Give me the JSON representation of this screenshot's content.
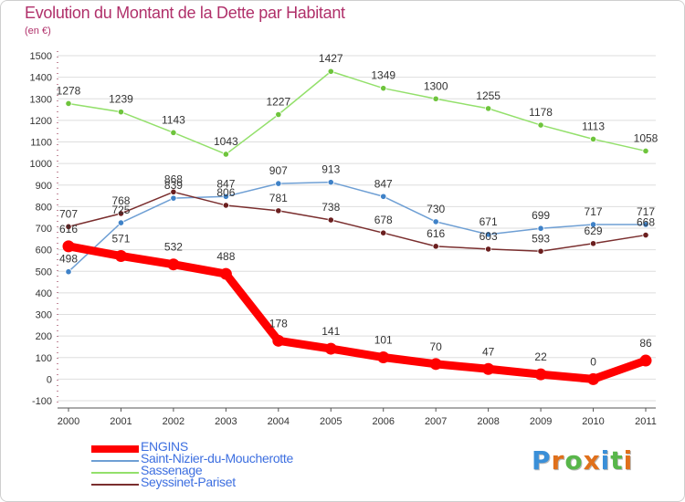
{
  "title": "Evolution du Montant de la Dette par Habitant",
  "subtitle": "(en €)",
  "logo": {
    "text": "Proxiti",
    "colors": [
      "#3a8fd8",
      "#e0701b",
      "#58b64a",
      "#e0701b",
      "#3a8fd8",
      "#58b64a",
      "#e0701b"
    ]
  },
  "chart_data": {
    "type": "line",
    "x": [
      "2000",
      "2001",
      "2002",
      "2003",
      "2004",
      "2005",
      "2006",
      "2007",
      "2008",
      "2009",
      "2010",
      "2011"
    ],
    "ylim": [
      -100,
      1500
    ],
    "yticks": [
      "-100",
      "0",
      "100",
      "200",
      "300",
      "400",
      "500",
      "600",
      "700",
      "800",
      "900",
      "1000",
      "1100",
      "1200",
      "1300",
      "1400",
      "1500"
    ],
    "grid": "horizontal",
    "legend_position": "bottom-left",
    "series": [
      {
        "name": "ENGINS",
        "color": "#ff0000",
        "marker": "#ff0000",
        "values": [
          616,
          571,
          532,
          488,
          178,
          141,
          101,
          70,
          47,
          22,
          0,
          86
        ]
      },
      {
        "name": "Saint-Nizier-du-Moucherotte",
        "color": "#6e9fd4",
        "marker": "#3f82c8",
        "values": [
          498,
          725,
          839,
          847,
          907,
          913,
          847,
          730,
          671,
          699,
          717,
          717
        ]
      },
      {
        "name": "Sassenage",
        "color": "#93e06b",
        "marker": "#6ec43c",
        "values": [
          1278,
          1239,
          1143,
          1043,
          1227,
          1427,
          1349,
          1300,
          1255,
          1178,
          1113,
          1058
        ]
      },
      {
        "name": "Seyssinet-Pariset",
        "color": "#7a2e2e",
        "marker": "#6b1f1f",
        "values": [
          707,
          768,
          868,
          806,
          781,
          738,
          678,
          616,
          603,
          593,
          629,
          668
        ]
      }
    ]
  }
}
